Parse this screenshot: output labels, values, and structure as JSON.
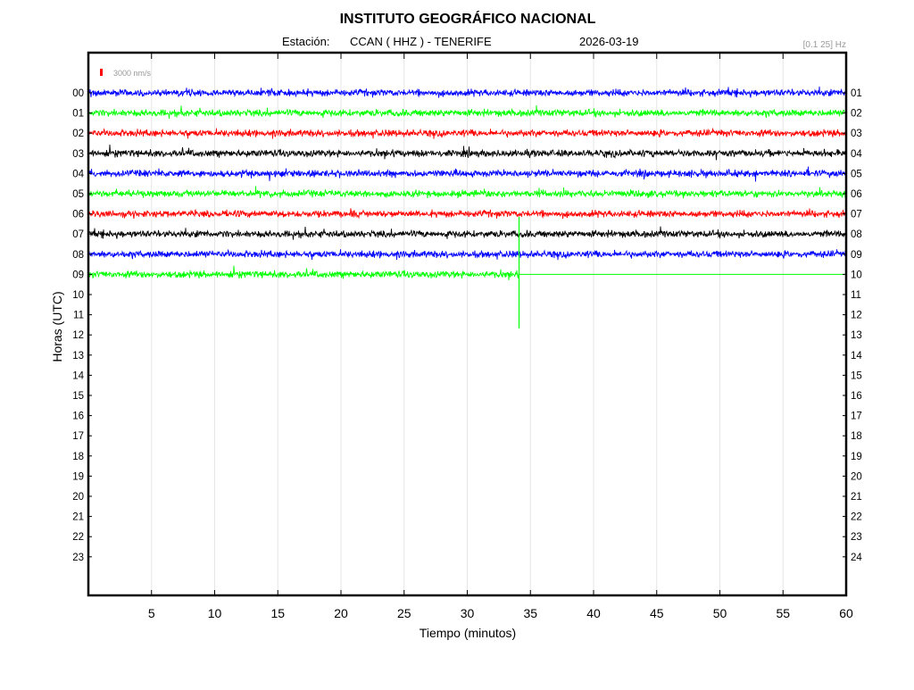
{
  "chart_data": {
    "type": "line",
    "title": "INSTITUTO GEOGRÁFICO NACIONAL",
    "station_label": "Estación:",
    "station": "CCAN ( HHZ ) - TENERIFE",
    "date": "2026-03-19",
    "filter": "[0.1 25] Hz",
    "scale_label": "3000 nm/s",
    "scale_color": "#ff0000",
    "xlabel": "Tiempo (minutos)",
    "ylabel": "Horas (UTC)",
    "xlim": [
      0,
      60
    ],
    "x_ticks": [
      5,
      10,
      15,
      20,
      25,
      30,
      35,
      40,
      45,
      50,
      55,
      60
    ],
    "y_ticks_left": [
      "00",
      "01",
      "02",
      "03",
      "04",
      "05",
      "06",
      "07",
      "08",
      "09",
      "10",
      "11",
      "12",
      "13",
      "14",
      "15",
      "16",
      "17",
      "18",
      "19",
      "20",
      "21",
      "22",
      "23"
    ],
    "y_ticks_right": [
      "01",
      "02",
      "03",
      "04",
      "05",
      "06",
      "07",
      "08",
      "09",
      "10",
      "11",
      "12",
      "13",
      "14",
      "15",
      "16",
      "17",
      "18",
      "19",
      "20",
      "21",
      "22",
      "23",
      "24"
    ],
    "grid": true,
    "colors": [
      "#0000ff",
      "#00ff00",
      "#ff0000",
      "#000000"
    ],
    "series": [
      {
        "hour": "00",
        "color": "#0000ff",
        "start_min": 0,
        "end_min": 60
      },
      {
        "hour": "01",
        "color": "#00ff00",
        "start_min": 0,
        "end_min": 60
      },
      {
        "hour": "02",
        "color": "#ff0000",
        "start_min": 0,
        "end_min": 60
      },
      {
        "hour": "03",
        "color": "#000000",
        "start_min": 0,
        "end_min": 60
      },
      {
        "hour": "04",
        "color": "#0000ff",
        "start_min": 0,
        "end_min": 60
      },
      {
        "hour": "05",
        "color": "#00ff00",
        "start_min": 0,
        "end_min": 60
      },
      {
        "hour": "06",
        "color": "#ff0000",
        "start_min": 0,
        "end_min": 60
      },
      {
        "hour": "07",
        "color": "#000000",
        "start_min": 0,
        "end_min": 60
      },
      {
        "hour": "08",
        "color": "#0000ff",
        "start_min": 0,
        "end_min": 60
      },
      {
        "hour": "09",
        "color": "#00ff00",
        "start_min": 0,
        "end_min": 34.1
      }
    ],
    "current_time_min": 34.1
  }
}
